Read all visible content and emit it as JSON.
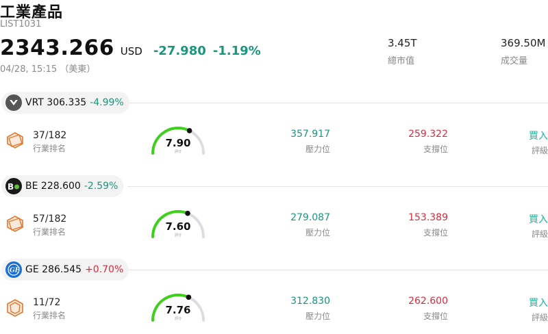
{
  "header": {
    "title": "工業產品",
    "code": "LIST1031",
    "price": "2343.266",
    "currency": "USD",
    "change": "-27.980",
    "change_pct": "-1.19%",
    "time": "04/28, 15:15 （美東）"
  },
  "stats": {
    "market_cap_value": "3.45T",
    "market_cap_label": "總市值",
    "volume_value": "369.50M",
    "volume_label": "成交量"
  },
  "colors": {
    "up": "#e2283a",
    "down": "#17977c",
    "rating": "#1db19a",
    "gauge_green": "#3dd11a",
    "gauge_gray": "#dcdde3"
  },
  "stocks": [
    {
      "symbol": "VRT",
      "price": "306.335",
      "change_pct": "-4.99%",
      "direction": "down",
      "logo": "vrt-logo",
      "rank": "37/182",
      "rank_label": "行業排名",
      "score": "7.90",
      "score_label": "評分",
      "score_value": 7.9,
      "resistance": "357.917",
      "resistance_label": "壓力位",
      "support": "259.322",
      "support_label": "支撐位",
      "rating": "買入",
      "rating_label": "評級"
    },
    {
      "symbol": "BE",
      "price": "228.600",
      "change_pct": "-2.59%",
      "direction": "down",
      "logo": "be-logo",
      "rank": "57/182",
      "rank_label": "行業排名",
      "score": "7.60",
      "score_label": "評分",
      "score_value": 7.6,
      "resistance": "279.087",
      "resistance_label": "壓力位",
      "support": "153.389",
      "support_label": "支撐位",
      "rating": "買入",
      "rating_label": "評級"
    },
    {
      "symbol": "GE",
      "price": "286.545",
      "change_pct": "+0.70%",
      "direction": "up",
      "logo": "ge-logo",
      "rank": "11/72",
      "rank_label": "行業排名",
      "score": "7.76",
      "score_label": "評分",
      "score_value": 7.76,
      "resistance": "312.830",
      "resistance_label": "壓力位",
      "support": "262.600",
      "support_label": "支撐位",
      "rating": "買入",
      "rating_label": "評級"
    }
  ]
}
